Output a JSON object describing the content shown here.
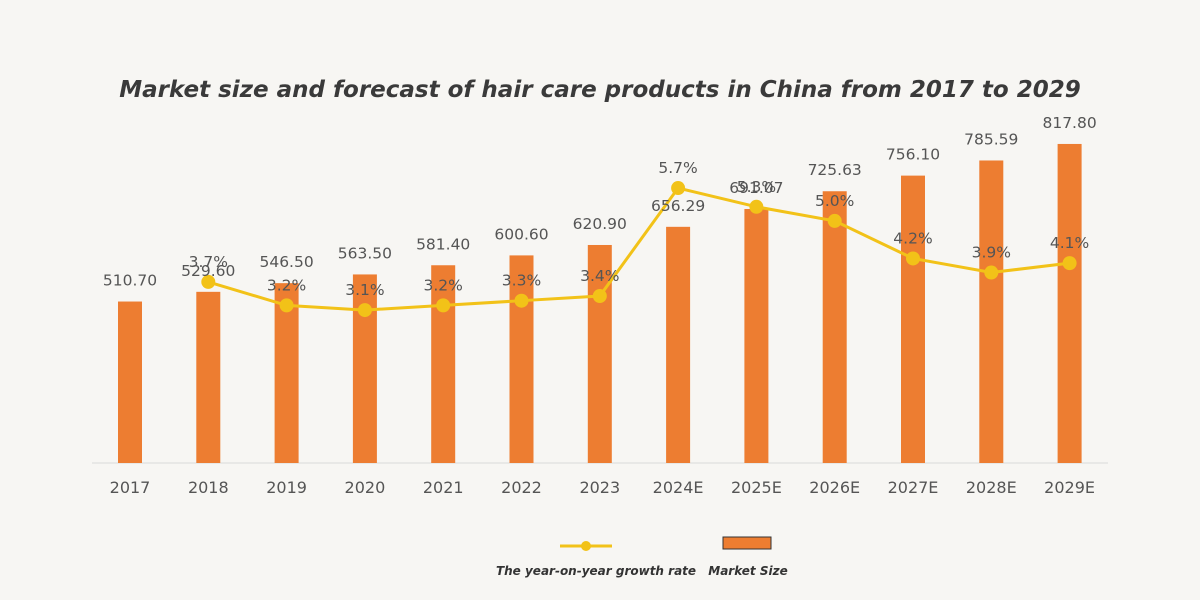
{
  "chart_data": {
    "type": "bar",
    "title": "Market size and forecast of hair care products in China from 2017 to 2029",
    "categories": [
      "2017",
      "2018",
      "2019",
      "2020",
      "2021",
      "2022",
      "2023",
      "2024E",
      "2025E",
      "2026E",
      "2027E",
      "2028E",
      "2029E"
    ],
    "series": [
      {
        "name": "Market Size",
        "kind": "bar",
        "color": "#ed7d31",
        "values": [
          510.7,
          529.6,
          546.5,
          563.5,
          581.4,
          600.6,
          620.9,
          656.29,
          691.07,
          725.63,
          756.1,
          785.59,
          817.8
        ],
        "labels": [
          "510.70",
          "529.60",
          "546.50",
          "563.50",
          "581.40",
          "600.60",
          "620.90",
          "656.29",
          "691.07",
          "725.63",
          "756.10",
          "785.59",
          "817.80"
        ]
      },
      {
        "name": "The year-on-year growth rate",
        "kind": "line",
        "color": "#f2c218",
        "values": [
          null,
          3.7,
          3.2,
          3.1,
          3.2,
          3.3,
          3.4,
          5.7,
          5.3,
          5.0,
          4.2,
          3.9,
          4.1
        ],
        "labels": [
          "",
          "3.7%",
          "3.2%",
          "3.1%",
          "3.2%",
          "3.3%",
          "3.4%",
          "5.7%",
          "5.3%",
          "5.0%",
          "4.2%",
          "3.9%",
          "4.1%"
        ]
      }
    ],
    "legend_position": "bottom-center",
    "grid": false
  }
}
